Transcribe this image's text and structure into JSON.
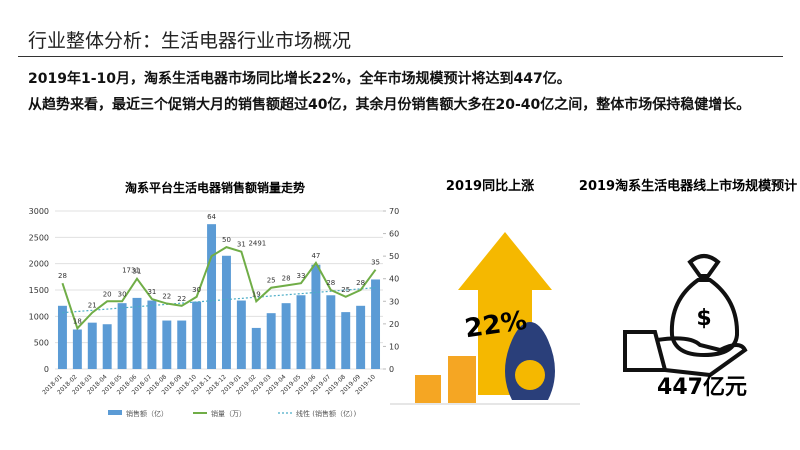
{
  "header": {
    "title": "行业整体分析：生活电器行业市场概况"
  },
  "paragraphs": [
    "2019年1-10月，淘系生活电器市场同比增长22%，全年市场规模预计将达到447亿。",
    "从趋势来看，最近三个促销大月的销售额超过40亿，其余月份销售额大多在20-40亿之间，整体市场保持稳健增长。"
  ],
  "chart_data": {
    "type": "bar-line",
    "title": "淘系平台生活电器销售额销量走势",
    "categories": [
      "2018-01",
      "2018-02",
      "2018-03",
      "2018-04",
      "2018-05",
      "2018-06",
      "2018-07",
      "2018-08",
      "2018-09",
      "2018-10",
      "2018-11",
      "2018-12",
      "2019-01",
      "2019-02",
      "2019-03",
      "2019-04",
      "2019-05",
      "2019-06",
      "2019-07",
      "2019-08",
      "2019-09",
      "2019-10"
    ],
    "series": [
      {
        "name": "销售额（亿）",
        "color": "#5b9bd5",
        "values": [
          1200,
          750,
          880,
          850,
          1250,
          1350,
          1300,
          920,
          920,
          1280,
          2750,
          2150,
          1300,
          780,
          1060,
          1250,
          1400,
          1980,
          1400,
          1080,
          1200,
          1700
        ],
        "data_labels": [
          28,
          18,
          21,
          20,
          30,
          31,
          31,
          22,
          22,
          30,
          64,
          50,
          31,
          19,
          25,
          28,
          33,
          47,
          28,
          25,
          28,
          35
        ]
      },
      {
        "name": "销量（万）",
        "color": "#70ad47",
        "axis": "y2",
        "values": [
          38,
          18,
          25,
          30,
          30,
          40,
          31,
          29,
          28,
          32,
          50,
          54,
          52,
          30,
          36,
          37,
          38,
          47,
          35,
          32,
          35,
          44
        ]
      }
    ],
    "trend_name": "线性 (销售额（亿）)",
    "trend_color": "#4bacc6",
    "annotations": [
      "1731",
      "2491"
    ],
    "ylim": [
      0,
      3000
    ],
    "yticks": [
      0,
      500,
      1000,
      1500,
      2000,
      2500,
      3000
    ],
    "y2lim": [
      0,
      70
    ],
    "y2ticks": [
      0,
      10,
      20,
      30,
      40,
      50,
      60,
      70
    ]
  },
  "panels": {
    "growth_title": "2019同比上涨",
    "growth_value": "22%",
    "market_title": "2019淘系生活电器线上市场规模预计",
    "market_value": "447亿元"
  }
}
